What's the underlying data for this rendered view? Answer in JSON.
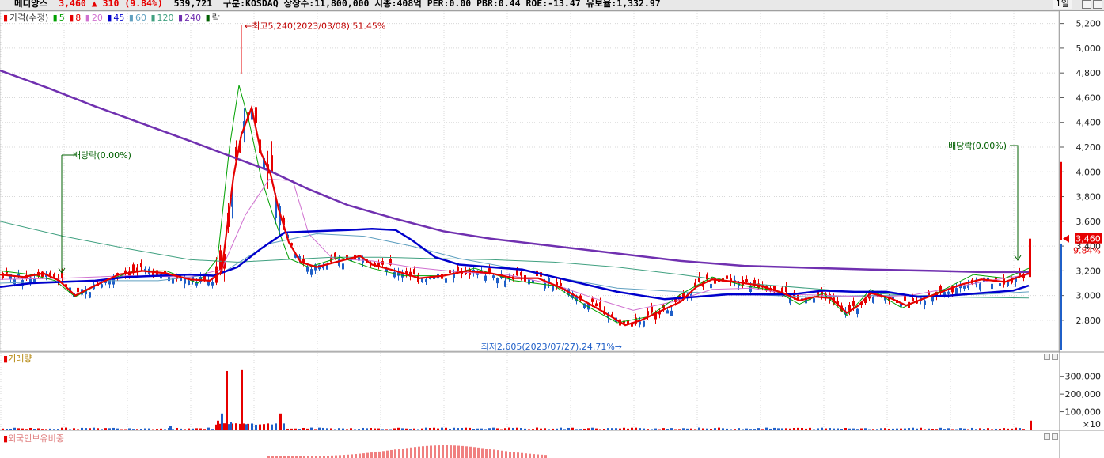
{
  "header": {
    "stock_name": "메디앙스",
    "price": "3,460",
    "change_arrow": "▲",
    "change": "310",
    "change_pct": "(9.84%)",
    "volume": "539,721",
    "market": "구분:KOSDAQ",
    "shares": "상장수:11,800,000",
    "market_cap": "시총:408억",
    "per": "PER:0.00",
    "pbr": "PBR:0.44",
    "roe": "ROE:-13.47",
    "float_ratio": "유보율:1,332.97",
    "period_button": "1일"
  },
  "legend": {
    "price_label": "가격(수정)",
    "ma": [
      {
        "label": "5",
        "color": "#00a000"
      },
      {
        "label": "8",
        "color": "#e60000"
      },
      {
        "label": "20",
        "color": "#d070d0"
      },
      {
        "label": "45",
        "color": "#0000cc"
      },
      {
        "label": "60",
        "color": "#60a0c0"
      },
      {
        "label": "120",
        "color": "#40a080"
      },
      {
        "label": "240",
        "color": "#7030b0"
      }
    ],
    "ex_label": "락"
  },
  "colors": {
    "up": "#e60000",
    "down": "#1f5fc8",
    "ma240": "#7030b0",
    "ma45": "#0000cc",
    "ma8": "#e60000",
    "ma5": "#00a000",
    "ma20": "#d070d0",
    "ma60": "#60a0c0",
    "ma120": "#40a080",
    "annotation": "#006000"
  },
  "chart_data": [
    {
      "type": "candlestick",
      "title": "",
      "ylim": [
        2550,
        5300
      ],
      "y_ticks": [
        "5,200",
        "5,000",
        "4,800",
        "4,600",
        "4,400",
        "4,200",
        "4,000",
        "3,800",
        "3,600",
        "3,400",
        "3,200",
        "3,000",
        "2,800"
      ],
      "y_tick_values": [
        5200,
        5000,
        4800,
        4600,
        4400,
        4200,
        4000,
        3800,
        3600,
        3400,
        3200,
        3000,
        2800
      ],
      "current_price": 3460,
      "current_price_label": "3,460",
      "current_change_label": "9.84%",
      "annotations": {
        "high": "최고5,240(2023/03/08),51.45%",
        "low": "최저2,605(2023/07/27),24.71%",
        "dividend_1": "배당락(0.00%)",
        "dividend_2": "배당락(0.00%)"
      },
      "ma240": [
        [
          0,
          4820
        ],
        [
          60,
          4680
        ],
        [
          120,
          4530
        ],
        [
          180,
          4390
        ],
        [
          240,
          4250
        ],
        [
          290,
          4130
        ],
        [
          340,
          4010
        ],
        [
          390,
          3860
        ],
        [
          440,
          3730
        ],
        [
          500,
          3620
        ],
        [
          560,
          3520
        ],
        [
          620,
          3460
        ],
        [
          700,
          3400
        ],
        [
          780,
          3340
        ],
        [
          860,
          3280
        ],
        [
          940,
          3240
        ],
        [
          1020,
          3225
        ],
        [
          1100,
          3210
        ],
        [
          1180,
          3200
        ],
        [
          1240,
          3190
        ],
        [
          1300,
          3190
        ]
      ],
      "ma45": [
        [
          0,
          3070
        ],
        [
          40,
          3100
        ],
        [
          80,
          3110
        ],
        [
          120,
          3120
        ],
        [
          160,
          3150
        ],
        [
          200,
          3160
        ],
        [
          240,
          3170
        ],
        [
          270,
          3160
        ],
        [
          300,
          3230
        ],
        [
          330,
          3380
        ],
        [
          360,
          3510
        ],
        [
          400,
          3520
        ],
        [
          440,
          3530
        ],
        [
          470,
          3540
        ],
        [
          500,
          3530
        ],
        [
          520,
          3450
        ],
        [
          550,
          3310
        ],
        [
          580,
          3250
        ],
        [
          620,
          3230
        ],
        [
          660,
          3210
        ],
        [
          700,
          3150
        ],
        [
          740,
          3090
        ],
        [
          780,
          3030
        ],
        [
          820,
          2990
        ],
        [
          840,
          2970
        ],
        [
          880,
          2990
        ],
        [
          920,
          3010
        ],
        [
          960,
          3010
        ],
        [
          1000,
          3010
        ],
        [
          1040,
          3040
        ],
        [
          1080,
          3030
        ],
        [
          1120,
          3030
        ],
        [
          1160,
          2990
        ],
        [
          1200,
          3000
        ],
        [
          1240,
          3020
        ],
        [
          1280,
          3040
        ],
        [
          1300,
          3080
        ]
      ],
      "ma8": [
        [
          0,
          3170
        ],
        [
          30,
          3150
        ],
        [
          55,
          3180
        ],
        [
          75,
          3120
        ],
        [
          95,
          3000
        ],
        [
          120,
          3080
        ],
        [
          150,
          3170
        ],
        [
          180,
          3200
        ],
        [
          210,
          3180
        ],
        [
          240,
          3130
        ],
        [
          265,
          3120
        ],
        [
          280,
          3190
        ],
        [
          295,
          3960
        ],
        [
          305,
          4300
        ],
        [
          318,
          4520
        ],
        [
          330,
          4150
        ],
        [
          342,
          3980
        ],
        [
          352,
          3700
        ],
        [
          365,
          3430
        ],
        [
          380,
          3270
        ],
        [
          400,
          3230
        ],
        [
          430,
          3280
        ],
        [
          455,
          3320
        ],
        [
          470,
          3250
        ],
        [
          500,
          3200
        ],
        [
          530,
          3140
        ],
        [
          560,
          3160
        ],
        [
          590,
          3200
        ],
        [
          620,
          3180
        ],
        [
          650,
          3140
        ],
        [
          680,
          3140
        ],
        [
          710,
          3060
        ],
        [
          740,
          2950
        ],
        [
          770,
          2840
        ],
        [
          790,
          2760
        ],
        [
          810,
          2800
        ],
        [
          830,
          2860
        ],
        [
          860,
          2950
        ],
        [
          880,
          3070
        ],
        [
          900,
          3130
        ],
        [
          930,
          3110
        ],
        [
          960,
          3080
        ],
        [
          990,
          3020
        ],
        [
          1010,
          2960
        ],
        [
          1030,
          2990
        ],
        [
          1050,
          2980
        ],
        [
          1070,
          2860
        ],
        [
          1085,
          2920
        ],
        [
          1100,
          3020
        ],
        [
          1125,
          2980
        ],
        [
          1145,
          2920
        ],
        [
          1165,
          2970
        ],
        [
          1190,
          3030
        ],
        [
          1215,
          3090
        ],
        [
          1240,
          3130
        ],
        [
          1270,
          3110
        ],
        [
          1300,
          3180
        ]
      ],
      "ma5": [
        [
          0,
          3200
        ],
        [
          40,
          3170
        ],
        [
          70,
          3120
        ],
        [
          95,
          2990
        ],
        [
          130,
          3110
        ],
        [
          170,
          3200
        ],
        [
          210,
          3200
        ],
        [
          250,
          3100
        ],
        [
          275,
          3300
        ],
        [
          290,
          4200
        ],
        [
          302,
          4700
        ],
        [
          315,
          4400
        ],
        [
          330,
          3950
        ],
        [
          345,
          3650
        ],
        [
          365,
          3300
        ],
        [
          390,
          3230
        ],
        [
          430,
          3310
        ],
        [
          470,
          3220
        ],
        [
          510,
          3160
        ],
        [
          560,
          3160
        ],
        [
          600,
          3220
        ],
        [
          650,
          3120
        ],
        [
          700,
          3080
        ],
        [
          740,
          2920
        ],
        [
          780,
          2780
        ],
        [
          820,
          2830
        ],
        [
          860,
          3010
        ],
        [
          900,
          3150
        ],
        [
          940,
          3080
        ],
        [
          980,
          3040
        ],
        [
          1010,
          2930
        ],
        [
          1040,
          3020
        ],
        [
          1070,
          2840
        ],
        [
          1100,
          3050
        ],
        [
          1140,
          2900
        ],
        [
          1190,
          3040
        ],
        [
          1230,
          3170
        ],
        [
          1270,
          3140
        ],
        [
          1300,
          3220
        ]
      ],
      "ma20": [
        [
          0,
          3130
        ],
        [
          80,
          3140
        ],
        [
          160,
          3160
        ],
        [
          240,
          3150
        ],
        [
          280,
          3210
        ],
        [
          310,
          3650
        ],
        [
          340,
          3940
        ],
        [
          370,
          3930
        ],
        [
          390,
          3500
        ],
        [
          420,
          3300
        ],
        [
          470,
          3280
        ],
        [
          520,
          3230
        ],
        [
          580,
          3190
        ],
        [
          640,
          3170
        ],
        [
          700,
          3090
        ],
        [
          750,
          2980
        ],
        [
          800,
          2880
        ],
        [
          850,
          2950
        ],
        [
          900,
          3050
        ],
        [
          950,
          3060
        ],
        [
          1000,
          3010
        ],
        [
          1050,
          3000
        ],
        [
          1100,
          2990
        ],
        [
          1150,
          3000
        ],
        [
          1200,
          3060
        ],
        [
          1250,
          3120
        ],
        [
          1300,
          3170
        ]
      ],
      "ma60": [
        [
          0,
          3100
        ],
        [
          100,
          3120
        ],
        [
          200,
          3120
        ],
        [
          280,
          3180
        ],
        [
          340,
          3420
        ],
        [
          400,
          3500
        ],
        [
          460,
          3480
        ],
        [
          520,
          3400
        ],
        [
          580,
          3300
        ],
        [
          640,
          3230
        ],
        [
          700,
          3150
        ],
        [
          780,
          3060
        ],
        [
          860,
          3030
        ],
        [
          940,
          3010
        ],
        [
          1020,
          2990
        ],
        [
          1100,
          3000
        ],
        [
          1180,
          3000
        ],
        [
          1240,
          3010
        ],
        [
          1300,
          3030
        ]
      ],
      "ma120": [
        [
          0,
          3600
        ],
        [
          80,
          3480
        ],
        [
          160,
          3380
        ],
        [
          240,
          3290
        ],
        [
          300,
          3270
        ],
        [
          360,
          3290
        ],
        [
          420,
          3310
        ],
        [
          480,
          3310
        ],
        [
          540,
          3300
        ],
        [
          620,
          3290
        ],
        [
          700,
          3270
        ],
        [
          780,
          3230
        ],
        [
          860,
          3170
        ],
        [
          940,
          3100
        ],
        [
          1020,
          3060
        ],
        [
          1100,
          3020
        ],
        [
          1180,
          2990
        ],
        [
          1300,
          2980
        ]
      ],
      "candles_x_range": [
        0,
        1300
      ],
      "last_candle": {
        "open": 3150,
        "high": 3580,
        "low": 3100,
        "close": 3460
      }
    },
    {
      "type": "bar",
      "title": "거래량",
      "y_ticks": [
        "300,000",
        "200,000",
        "100,000"
      ],
      "y_tick_values": [
        300000,
        200000,
        100000
      ],
      "unit_label": "×10",
      "ylim": [
        0,
        370000
      ],
      "spikes": [
        [
          274,
          50000
        ],
        [
          279,
          90000
        ],
        [
          285,
          330000
        ],
        [
          290,
          40000
        ],
        [
          304,
          335000
        ],
        [
          310,
          30000
        ],
        [
          353,
          90000
        ],
        [
          214,
          20000
        ],
        [
          1301,
          50000
        ]
      ]
    },
    {
      "type": "bar",
      "title": "외국인보유비중"
    }
  ]
}
